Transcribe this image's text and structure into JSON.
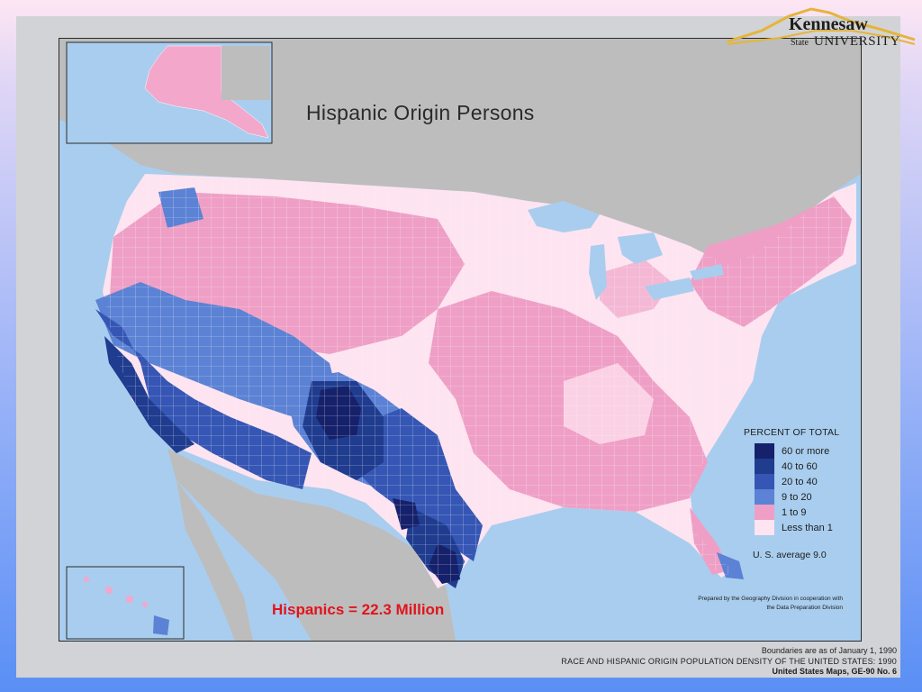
{
  "map": {
    "title": "Hispanic Origin Persons",
    "legend": {
      "title": "PERCENT OF TOTAL",
      "items": [
        {
          "label": "60 or more",
          "color": "#16216b"
        },
        {
          "label": "40 to 60",
          "color": "#1f3c8f"
        },
        {
          "label": "20 to 40",
          "color": "#3556b4"
        },
        {
          "label": "9 to 20",
          "color": "#5b82d4"
        },
        {
          "label": "1 to 9",
          "color": "#ef9fc6"
        },
        {
          "label": "Less than 1",
          "color": "#fde4f0"
        }
      ]
    },
    "us_average": "U. S. average 9.0",
    "prepared_by": "Prepared by the Geography Division in cooperation with the Data Preparation Division",
    "water_color": "#a9cdee",
    "land_gray": "#bdbdbd"
  },
  "annotation": {
    "hispanic_total": "Hispanics = 22.3  Million",
    "color": "#e1141b"
  },
  "footer": {
    "boundaries": "Boundaries are as of January 1, 1990",
    "source_title": "RACE AND HISPANIC ORIGIN POPULATION DENSITY OF THE UNITED STATES:  1990",
    "series": "United States Maps, GE-90 No. 6"
  },
  "logo": {
    "line1": "Kennesaw",
    "state": "State",
    "university": "UNIVERSITY",
    "color": "#e5b53b"
  }
}
